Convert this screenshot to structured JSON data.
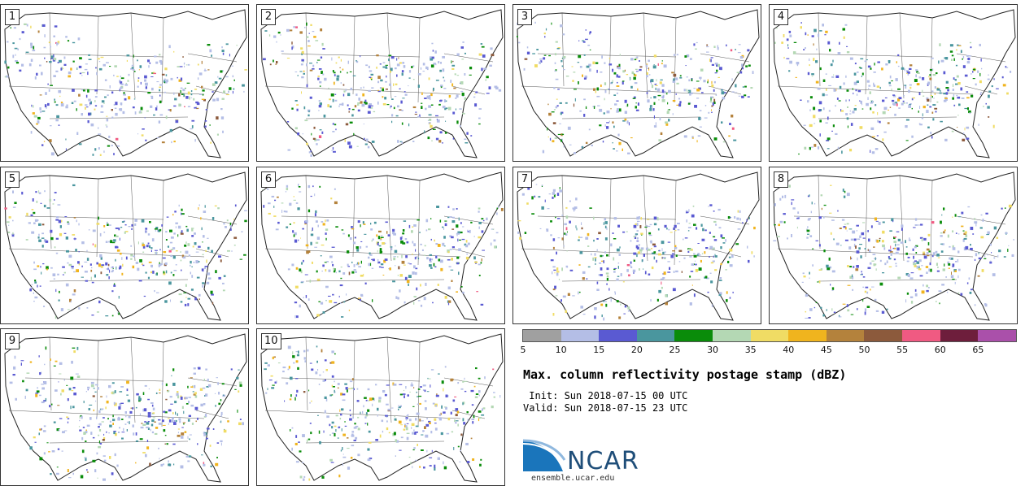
{
  "panels": [
    {
      "label": "1"
    },
    {
      "label": "2"
    },
    {
      "label": "3"
    },
    {
      "label": "4"
    },
    {
      "label": "5"
    },
    {
      "label": "6"
    },
    {
      "label": "7"
    },
    {
      "label": "8"
    },
    {
      "label": "9"
    },
    {
      "label": "10"
    }
  ],
  "colorbar": {
    "colors": [
      "#a0a0a0",
      "#b4bee6",
      "#5a5ad2",
      "#4a969e",
      "#0a8c0a",
      "#b4d8b4",
      "#f0dc64",
      "#f0b41e",
      "#b4823c",
      "#8c5a3c",
      "#f05a82",
      "#6e1e3c",
      "#aa50aa"
    ],
    "ticks": [
      "5",
      "10",
      "15",
      "20",
      "25",
      "30",
      "35",
      "40",
      "45",
      "50",
      "55",
      "60",
      "65"
    ]
  },
  "title": "Max. column reflectivity postage stamp (dBZ)",
  "init_text": " Init: Sun 2018-07-15 00 UTC",
  "valid_text": "Valid: Sun 2018-07-15 23 UTC",
  "logo": {
    "text": "NCAR",
    "url": "ensemble.ucar.edu"
  }
}
